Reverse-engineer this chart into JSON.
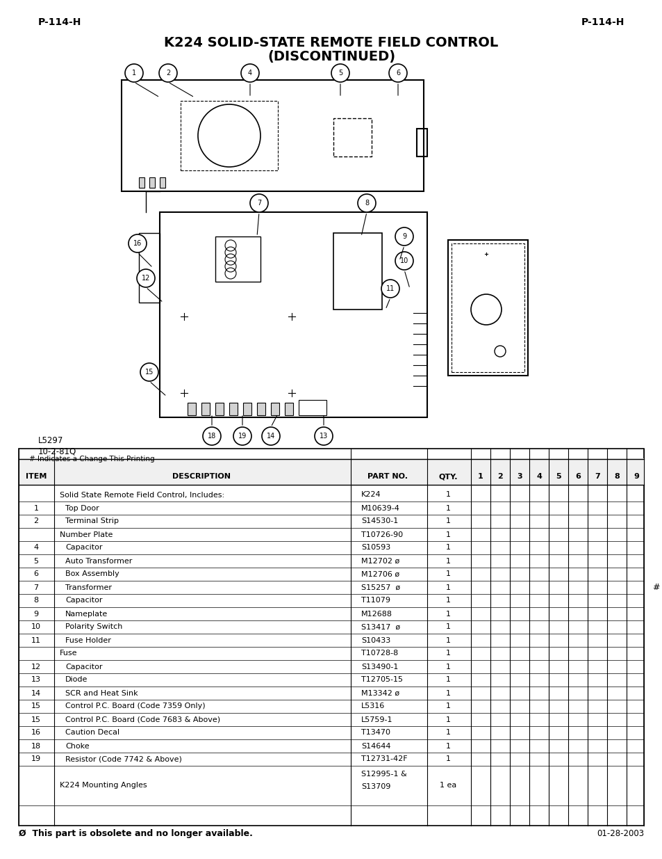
{
  "page_header_left": "P-114-H",
  "page_header_right": "P-114-H",
  "title_line1": "K224 SOLID-STATE REMOTE FIELD CONTROL",
  "title_line2": "(DISCONTINUED)",
  "diagram_label": "L5297\n10-2-81Q",
  "table_note": "# Indicates a Change This Printing",
  "col_headers": [
    "ITEM",
    "DESCRIPTION",
    "PART NO.",
    "QTY.",
    "1",
    "2",
    "3",
    "4",
    "5",
    "6",
    "7",
    "8",
    "9"
  ],
  "table_rows": [
    [
      "",
      "Solid State Remote Field Control, Includes:",
      "K224",
      "1",
      "",
      "",
      "",
      "",
      "",
      "",
      "",
      "",
      ""
    ],
    [
      "1",
      "Top Door",
      "M10639-4",
      "1",
      "",
      "",
      "",
      "",
      "",
      "",
      "",
      "",
      ""
    ],
    [
      "2",
      "Terminal Strip",
      "S14530-1",
      "1",
      "",
      "",
      "",
      "",
      "",
      "",
      "",
      "",
      ""
    ],
    [
      "",
      "Number Plate",
      "T10726-90",
      "1",
      "",
      "",
      "",
      "",
      "",
      "",
      "",
      "",
      ""
    ],
    [
      "4",
      "Capacitor",
      "S10593",
      "1",
      "",
      "",
      "",
      "",
      "",
      "",
      "",
      "",
      ""
    ],
    [
      "5",
      "Auto Transformer",
      "M12702 ø",
      "1",
      "",
      "",
      "",
      "",
      "",
      "",
      "",
      "",
      ""
    ],
    [
      "6",
      "Box Assembly",
      "M12706 ø",
      "1",
      "",
      "",
      "",
      "",
      "",
      "",
      "",
      "",
      ""
    ],
    [
      "7",
      "Transformer",
      "S15257  ø",
      "1",
      "",
      "",
      "",
      "",
      "",
      "",
      "",
      "",
      ""
    ],
    [
      "8",
      "Capacitor",
      "T11079",
      "1",
      "",
      "",
      "",
      "",
      "",
      "",
      "",
      "",
      ""
    ],
    [
      "9",
      "Nameplate",
      "M12688",
      "1",
      "",
      "",
      "",
      "",
      "",
      "",
      "",
      "",
      ""
    ],
    [
      "10",
      "Polarity Switch",
      "S13417  ø",
      "1",
      "",
      "",
      "",
      "",
      "",
      "",
      "",
      "",
      ""
    ],
    [
      "11",
      "Fuse Holder",
      "S10433",
      "1",
      "",
      "",
      "",
      "",
      "",
      "",
      "",
      "",
      ""
    ],
    [
      "",
      "Fuse",
      "T10728-8",
      "1",
      "",
      "",
      "",
      "",
      "",
      "",
      "",
      "",
      ""
    ],
    [
      "12",
      "Capacitor",
      "S13490-1",
      "1",
      "",
      "",
      "",
      "",
      "",
      "",
      "",
      "",
      ""
    ],
    [
      "13",
      "Diode",
      "T12705-15",
      "1",
      "",
      "",
      "",
      "",
      "",
      "",
      "",
      "",
      ""
    ],
    [
      "14",
      "SCR and Heat Sink",
      "M13342 ø",
      "1",
      "",
      "",
      "",
      "",
      "",
      "",
      "",
      "",
      ""
    ],
    [
      "15",
      "Control P.C. Board (Code 7359 Only)",
      "L5316",
      "1",
      "",
      "",
      "",
      "",
      "",
      "",
      "",
      "",
      ""
    ],
    [
      "15",
      "Control P.C. Board (Code 7683 & Above)",
      "L5759-1",
      "1",
      "",
      "",
      "",
      "",
      "",
      "",
      "",
      "",
      ""
    ],
    [
      "16",
      "Caution Decal",
      "T13470",
      "1",
      "",
      "",
      "",
      "",
      "",
      "",
      "",
      "",
      ""
    ],
    [
      "18",
      "Choke",
      "S14644",
      "1",
      "",
      "",
      "",
      "",
      "",
      "",
      "",
      "",
      ""
    ],
    [
      "19",
      "Resistor (Code 7742 & Above)",
      "T12731-42F",
      "1",
      "",
      "",
      "",
      "",
      "",
      "",
      "",
      "",
      ""
    ],
    [
      "",
      "K224 Mounting Angles",
      "S12995-1 &\nS13709",
      "1 ea",
      "",
      "",
      "",
      "",
      "",
      "",
      "",
      "",
      ""
    ]
  ],
  "hash_row_index": 7,
  "footer_left": "Ø  This part is obsolete and no longer available.",
  "footer_right": "01-28-2003",
  "bg_color": "#ffffff",
  "text_color": "#000000",
  "border_color": "#000000"
}
